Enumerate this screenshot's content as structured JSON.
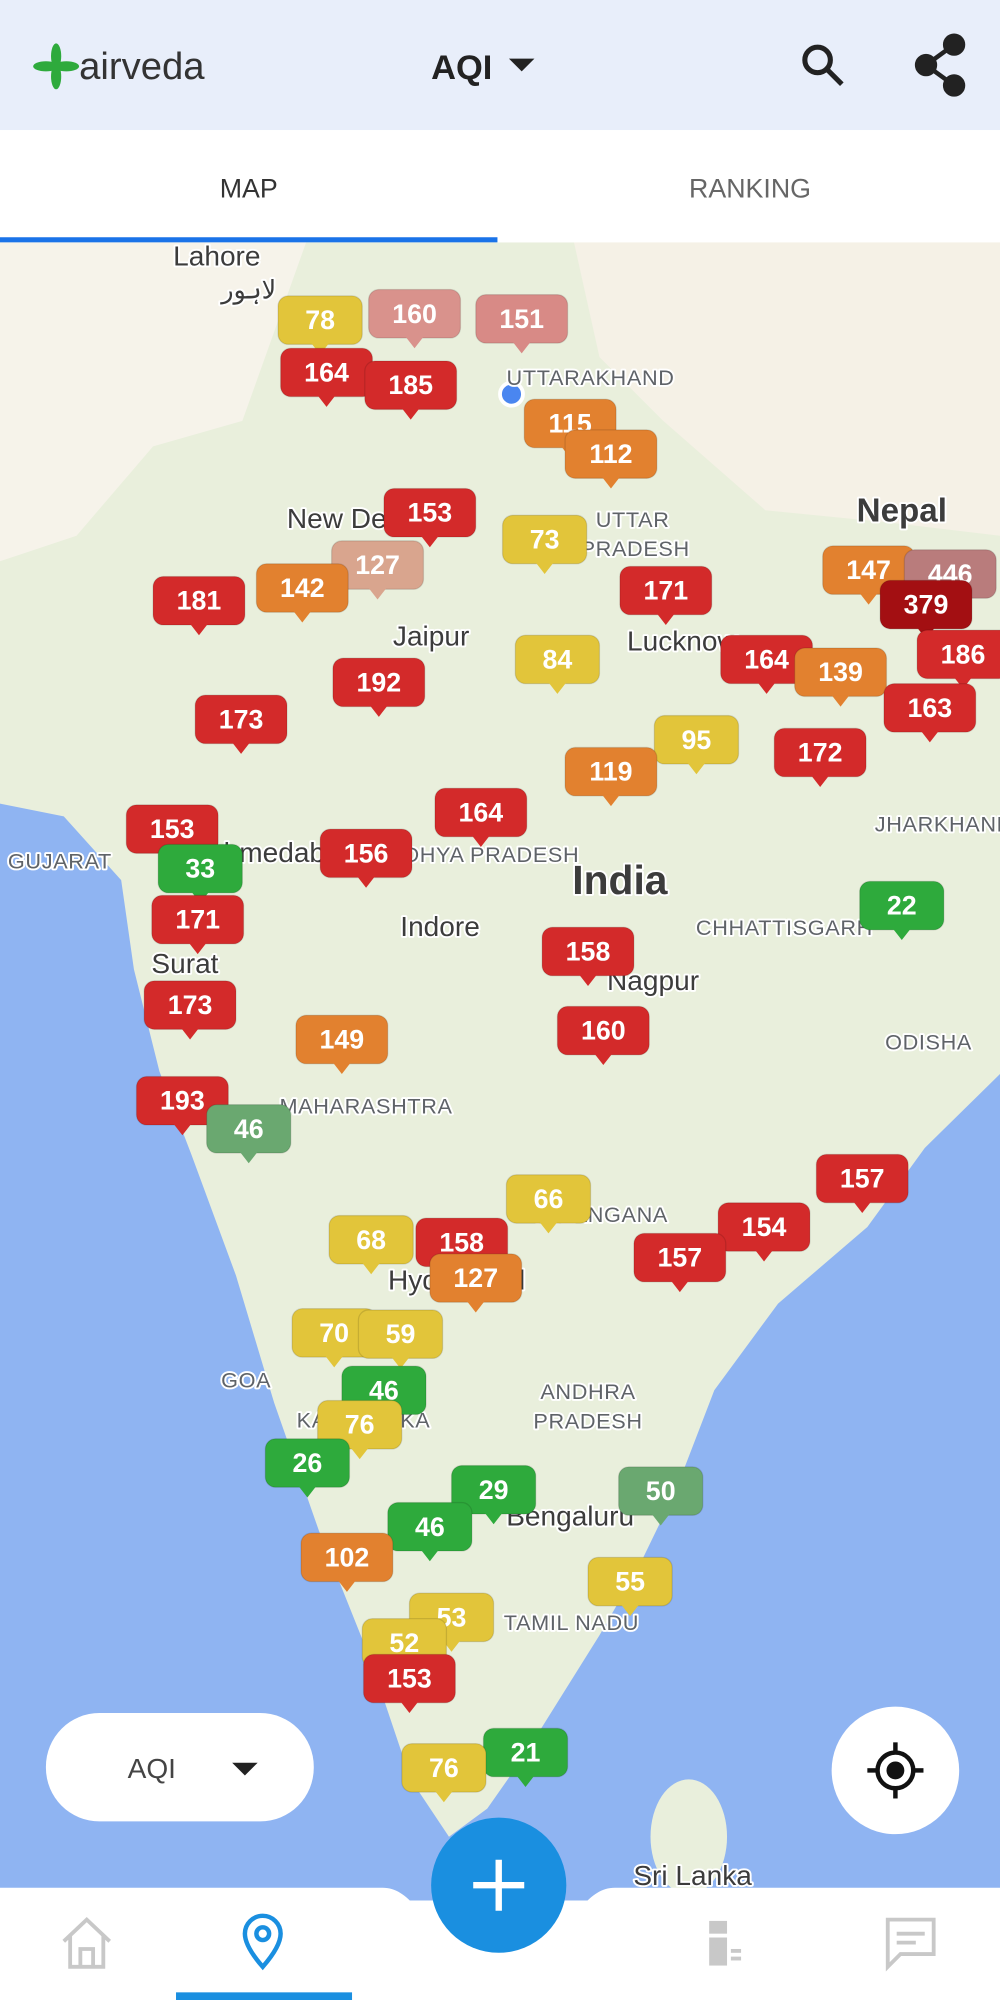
{
  "header": {
    "app_name": "airveda",
    "pollutant": "AQI"
  },
  "tabs": [
    "MAP",
    "RANKING"
  ],
  "map": {
    "labels": [
      "Lahore",
      "لاہور",
      "UTTARAKHAND",
      "New Delhi",
      "UTTAR",
      "PRADESH",
      "Nepal",
      "Jaipur",
      "Lucknow",
      "JHARKHAND",
      "GUJARAT",
      "Ahmedabad",
      "MADHYA PRADESH",
      "India",
      "Indore",
      "CHHATTISGARH",
      "Surat",
      "Nagpur",
      "ODISHA",
      "MAHARASHTRA",
      "TELANGANA",
      "Hyderabad",
      "GOA",
      "ANDHRA",
      "PRADESH",
      "KARNATAKA",
      "Bengaluru",
      "TAMIL NADU",
      "Sri Lanka"
    ],
    "markers": [
      {
        "value": 160,
        "color": "#d9928c"
      },
      {
        "value": 151,
        "color": "#d88a86"
      },
      {
        "value": 78,
        "color": "#e2c53a"
      },
      {
        "value": 164,
        "color": "#d32a2a"
      },
      {
        "value": 185,
        "color": "#d32a2a"
      },
      {
        "value": 115,
        "color": "#e2812f"
      },
      {
        "value": 112,
        "color": "#e2812f"
      },
      {
        "value": 153,
        "color": "#d32a2a"
      },
      {
        "value": 73,
        "color": "#e2c53a"
      },
      {
        "value": 127,
        "color": "#d9a58e"
      },
      {
        "value": 142,
        "color": "#e2812f"
      },
      {
        "value": 181,
        "color": "#d32a2a"
      },
      {
        "value": 171,
        "color": "#d32a2a"
      },
      {
        "value": 147,
        "color": "#e2812f"
      },
      {
        "value": 446,
        "color": "#b97c7c"
      },
      {
        "value": 379,
        "color": "#a30f12"
      },
      {
        "value": 186,
        "color": "#d32a2a"
      },
      {
        "value": 164,
        "color": "#d32a2a"
      },
      {
        "value": 139,
        "color": "#e2812f"
      },
      {
        "value": 163,
        "color": "#d32a2a"
      },
      {
        "value": 192,
        "color": "#d32a2a"
      },
      {
        "value": 84,
        "color": "#e2c53a"
      },
      {
        "value": 173,
        "color": "#d32a2a"
      },
      {
        "value": 95,
        "color": "#e2c53a"
      },
      {
        "value": 119,
        "color": "#e2812f"
      },
      {
        "value": 172,
        "color": "#d32a2a"
      },
      {
        "value": 153,
        "color": "#d32a2a"
      },
      {
        "value": 164,
        "color": "#d32a2a"
      },
      {
        "value": 156,
        "color": "#d32a2a"
      },
      {
        "value": 33,
        "color": "#2eaa3c"
      },
      {
        "value": 22,
        "color": "#2eaa3c"
      },
      {
        "value": 171,
        "color": "#d32a2a"
      },
      {
        "value": 158,
        "color": "#d32a2a"
      },
      {
        "value": 173,
        "color": "#d32a2a"
      },
      {
        "value": 160,
        "color": "#d32a2a"
      },
      {
        "value": 149,
        "color": "#e2812f"
      },
      {
        "value": 193,
        "color": "#d32a2a"
      },
      {
        "value": 46,
        "color": "#6aa870"
      },
      {
        "value": 157,
        "color": "#d32a2a"
      },
      {
        "value": 66,
        "color": "#e2c53a"
      },
      {
        "value": 154,
        "color": "#d32a2a"
      },
      {
        "value": 68,
        "color": "#e2c53a"
      },
      {
        "value": 158,
        "color": "#d32a2a"
      },
      {
        "value": 157,
        "color": "#d32a2a"
      },
      {
        "value": 127,
        "color": "#e2812f"
      },
      {
        "value": 70,
        "color": "#e2c53a"
      },
      {
        "value": 59,
        "color": "#e2c53a"
      },
      {
        "value": 46,
        "color": "#2eaa3c"
      },
      {
        "value": 76,
        "color": "#e2c53a"
      },
      {
        "value": 26,
        "color": "#2eaa3c"
      },
      {
        "value": 29,
        "color": "#2eaa3c"
      },
      {
        "value": 50,
        "color": "#6aa870"
      },
      {
        "value": 46,
        "color": "#2eaa3c"
      },
      {
        "value": 102,
        "color": "#e2812f"
      },
      {
        "value": 55,
        "color": "#e2c53a"
      },
      {
        "value": 53,
        "color": "#e2c53a"
      },
      {
        "value": 52,
        "color": "#e2c53a"
      },
      {
        "value": 153,
        "color": "#d32a2a"
      },
      {
        "value": 21,
        "color": "#2eaa3c"
      },
      {
        "value": 76,
        "color": "#e2c53a"
      }
    ]
  },
  "controls": {
    "pollutant": "AQI"
  }
}
